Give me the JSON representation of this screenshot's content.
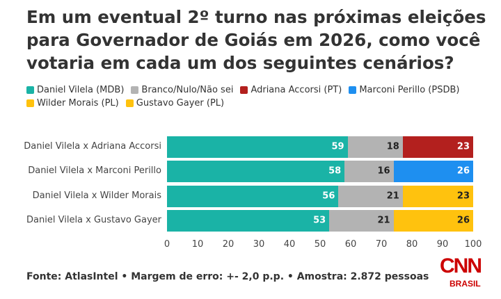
{
  "chart_data": {
    "type": "stacked-barh",
    "title": "Em um eventual 2º turno nas próximas eleições para Governador de Goiás em 2026, como você votaria em cada um dos seguintes cenários?",
    "categories": [
      "Daniel Vilela x Adriana Accorsi",
      "Daniel Vilela x Marconi Perillo",
      "Daniel Vilela x Wilder Morais",
      "Daniel Vilela x Gustavo Gayer"
    ],
    "series": [
      {
        "name": "Daniel Vilela (MDB)",
        "color": "#1ab3a6",
        "values": [
          59,
          58,
          56,
          53
        ]
      },
      {
        "name": "Branco/Nulo/Não sei",
        "color": "#b3b3b3",
        "values": [
          18,
          16,
          21,
          21
        ]
      },
      {
        "name": "Adriana Accorsi (PT)",
        "color": "#b3201e",
        "values": [
          23,
          null,
          null,
          null
        ]
      },
      {
        "name": "Marconi Perillo (PSDB)",
        "color": "#1e8ff0",
        "values": [
          null,
          26,
          null,
          null
        ]
      },
      {
        "name": "Wilder Morais (PL)",
        "color": "#ffc20e",
        "values": [
          null,
          null,
          23,
          null
        ]
      },
      {
        "name": "Gustavo Gayer (PL)",
        "color": "#ffc20e",
        "values": [
          null,
          null,
          null,
          26
        ]
      }
    ],
    "xlim": [
      0,
      100
    ],
    "xticks": [
      0,
      10,
      20,
      30,
      40,
      50,
      60,
      70,
      80,
      90,
      100
    ],
    "source": "Fonte: AtlasIntel • Margem de erro: +- 2,0 p.p. • Amostra: 2.872 pessoas",
    "logo_text": "CNN",
    "logo_subtext": "BRASIL"
  }
}
